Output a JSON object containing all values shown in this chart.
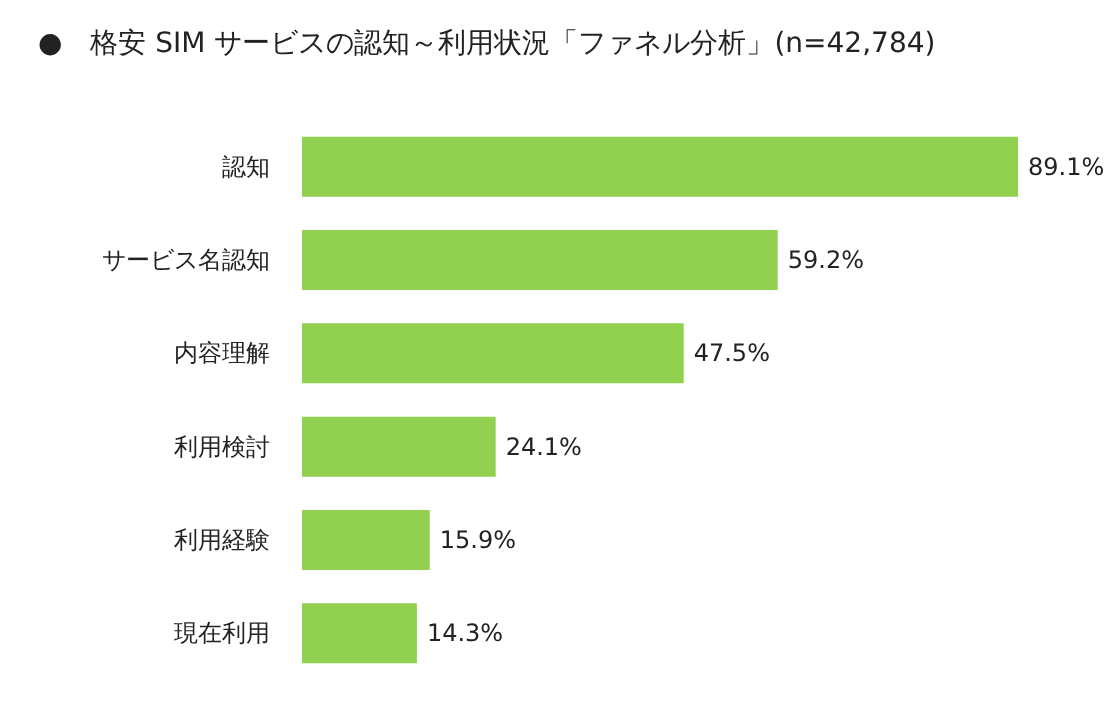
{
  "chart_data": {
    "type": "bar",
    "orientation": "horizontal",
    "title": "●　格安 SIM サービスの認知～利用状況「ファネル分析」(n=42,784)",
    "categories": [
      "認知",
      "サービス名認知",
      "内容理解",
      "利用検討",
      "利用経験",
      "現在利用"
    ],
    "values": [
      89.1,
      59.2,
      47.5,
      24.1,
      15.9,
      14.3
    ],
    "value_labels": [
      "89.1%",
      "59.2%",
      "47.5%",
      "24.1%",
      "15.9%",
      "14.3%"
    ],
    "color": "#92d050"
  }
}
